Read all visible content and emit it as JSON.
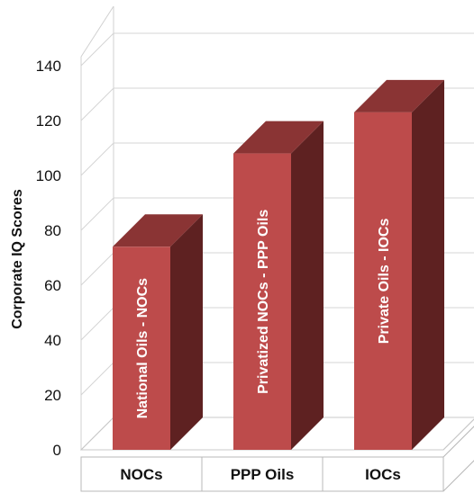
{
  "chart_data": {
    "type": "bar",
    "ylabel": "Corporate IQ Scores",
    "ylim": [
      0,
      140
    ],
    "ytick_step": 20,
    "yticks": [
      "0",
      "20",
      "40",
      "60",
      "80",
      "100",
      "120",
      "140"
    ],
    "categories": [
      "NOCs",
      "PPP Oils",
      "IOCs"
    ],
    "bar_labels": [
      "National Oils - NOCs",
      "Privatized NOCs - PPP Oils",
      "Private Oils - IOCs"
    ],
    "values": [
      74,
      108,
      123
    ],
    "grid": true,
    "legend": "none",
    "style": "3d",
    "colors": {
      "front": "#bd4b4b",
      "top": "#8a3434",
      "side": "#5e2121"
    }
  }
}
